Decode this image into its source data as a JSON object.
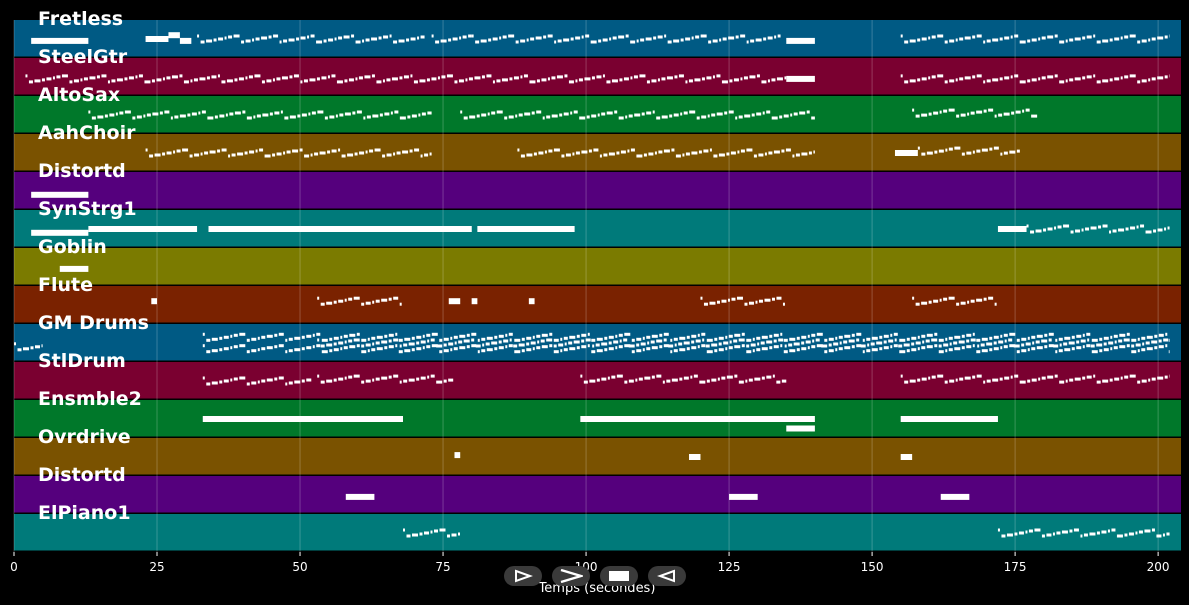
{
  "chart_data": {
    "type": "piano-roll",
    "xlabel": "Temps (secondes)",
    "xlim": [
      0,
      204
    ],
    "xticks": [
      0,
      25,
      50,
      75,
      100,
      125,
      150,
      175,
      200
    ],
    "grid": "vertical",
    "tracks": [
      {
        "name": "Fretless",
        "color": "#005a84",
        "notes": [
          [
            3,
            13,
            0.55
          ],
          [
            23,
            27,
            0.5
          ],
          [
            27,
            29,
            0.4
          ],
          [
            29,
            31,
            0.55
          ],
          [
            32,
            72,
            0.5,
            "dense"
          ],
          [
            73,
            80,
            0.5,
            "dense"
          ],
          [
            80,
            134,
            0.5,
            "dense"
          ],
          [
            135,
            140,
            0.55
          ],
          [
            155,
            202,
            0.5,
            "dense"
          ]
        ]
      },
      {
        "name": "SteelGtr",
        "color": "#7a0030",
        "notes": [
          [
            2,
            135,
            0.55,
            "dense"
          ],
          [
            135,
            140,
            0.55
          ],
          [
            155,
            202,
            0.55,
            "dense"
          ]
        ]
      },
      {
        "name": "AltoSax",
        "color": "#00782a",
        "notes": [
          [
            13,
            73,
            0.5,
            "dense"
          ],
          [
            78,
            140,
            0.5,
            "dense"
          ],
          [
            157,
            179,
            0.45,
            "dense"
          ]
        ]
      },
      {
        "name": "AahChoir",
        "color": "#7a5200",
        "notes": [
          [
            23,
            73,
            0.5,
            "dense"
          ],
          [
            88,
            140,
            0.5,
            "dense"
          ],
          [
            154,
            158,
            0.5
          ],
          [
            158,
            176,
            0.45,
            "dense"
          ]
        ]
      },
      {
        "name": "Distortd",
        "color": "#55007d",
        "notes": [
          [
            3,
            13,
            0.6
          ]
        ]
      },
      {
        "name": "SynStrg1",
        "color": "#007a7a",
        "notes": [
          [
            3,
            13,
            0.6
          ],
          [
            13,
            32,
            0.5
          ],
          [
            34,
            80,
            0.5
          ],
          [
            68,
            80,
            0.5
          ],
          [
            81,
            98,
            0.5
          ],
          [
            172,
            177,
            0.5
          ],
          [
            177,
            202,
            0.5,
            "dense"
          ]
        ]
      },
      {
        "name": "Goblin",
        "color": "#7b7b00",
        "notes": [
          [
            8,
            13,
            0.55
          ]
        ]
      },
      {
        "name": "Flute",
        "color": "#7a2200",
        "notes": [
          [
            24,
            25,
            0.4
          ],
          [
            53,
            68,
            0.4,
            "dense"
          ],
          [
            76,
            78,
            0.4
          ],
          [
            80,
            81,
            0.4
          ],
          [
            90,
            91,
            0.4
          ],
          [
            120,
            135,
            0.4,
            "dense"
          ],
          [
            157,
            172,
            0.4,
            "dense"
          ]
        ]
      },
      {
        "name": "GM Drums",
        "color": "#005a84",
        "notes": [
          [
            0,
            5,
            0.6,
            "dense"
          ],
          [
            33,
            202,
            0.35,
            "dense"
          ],
          [
            33,
            202,
            0.65,
            "dense"
          ],
          [
            53,
            202,
            0.5,
            "dense"
          ]
        ]
      },
      {
        "name": "StlDrum",
        "color": "#7a0030",
        "notes": [
          [
            33,
            52,
            0.5,
            "dense"
          ],
          [
            53,
            77,
            0.45,
            "dense"
          ],
          [
            99,
            135,
            0.45,
            "dense"
          ],
          [
            155,
            202,
            0.45,
            "dense"
          ]
        ]
      },
      {
        "name": "Ensmble2",
        "color": "#00782a",
        "notes": [
          [
            33,
            68,
            0.5
          ],
          [
            99,
            140,
            0.5
          ],
          [
            135,
            140,
            0.75
          ],
          [
            155,
            172,
            0.5
          ]
        ]
      },
      {
        "name": "Ovrdrive",
        "color": "#7a5200",
        "notes": [
          [
            77,
            78,
            0.45
          ],
          [
            118,
            120,
            0.5
          ],
          [
            155,
            157,
            0.5
          ]
        ]
      },
      {
        "name": "Distortd",
        "color": "#55007d",
        "notes": [
          [
            58,
            63,
            0.55
          ],
          [
            125,
            130,
            0.55
          ],
          [
            162,
            167,
            0.55
          ]
        ]
      },
      {
        "name": "ElPiano1",
        "color": "#007a7a",
        "notes": [
          [
            68,
            78,
            0.5,
            "dense"
          ],
          [
            172,
            202,
            0.5,
            "dense"
          ]
        ]
      }
    ]
  },
  "controls": {
    "play_label": "play",
    "forward_label": "forward",
    "stop_label": "stop",
    "rewind_label": "rewind"
  }
}
